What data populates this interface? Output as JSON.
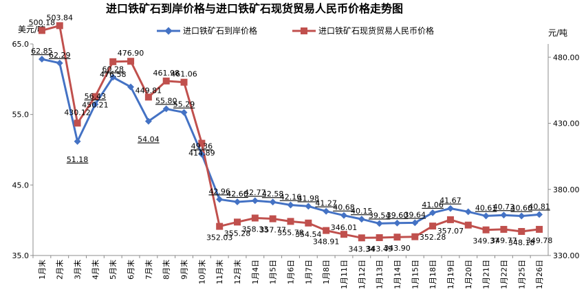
{
  "chart_data": {
    "type": "line",
    "title": "进口铁矿石到岸价格与进口铁矿石现货贸易人民币价格走势图",
    "y_left_unit": "美元/吨",
    "y_right_unit": "元/吨",
    "y_left_ticks": [
      "65.0",
      "55.0",
      "45.0",
      "35.0"
    ],
    "y_right_ticks": [
      "480.00",
      "430.00",
      "380.00",
      "330.00"
    ],
    "ylim_left": [
      35,
      65
    ],
    "ylim_right": [
      330,
      490
    ],
    "categories": [
      "1月末",
      "2月末",
      "3月末",
      "4月末",
      "5月末",
      "6月末",
      "7月末",
      "8月末",
      "9月末",
      "10月末",
      "11月末",
      "12月末",
      "1月4日",
      "1月5日",
      "1月6日",
      "1月7日",
      "1月8日",
      "1月11日",
      "1月12日",
      "1月13日",
      "1月14日",
      "1月15日",
      "1月18日",
      "1月19日",
      "1月20日",
      "1月21日",
      "1月22日",
      "1月25日",
      "1月26日"
    ],
    "series": [
      {
        "name": "进口铁矿石到岸价格",
        "axis": "left",
        "color": "#4472C4",
        "marker": "diamond",
        "values": [
          62.85,
          62.29,
          51.18,
          56.43,
          60.28,
          58.9,
          54.04,
          55.8,
          55.29,
          49.36,
          42.96,
          42.6,
          42.77,
          42.58,
          42.16,
          41.98,
          41.27,
          40.68,
          40.15,
          39.54,
          39.6,
          39.64,
          41.06,
          41.67,
          41.2,
          40.61,
          40.73,
          40.6,
          40.81
        ],
        "labels": [
          "62.85",
          "62.29",
          "51.18",
          "56.43",
          "60.28",
          "",
          "54.04",
          "55.80",
          "55.29",
          "49.36",
          "42.96",
          "42.60",
          "42.77",
          "42.58",
          "42.16",
          "41.98",
          "41.27",
          "40.68",
          "40.15",
          "39.54",
          "39.60",
          "39.64",
          "41.06",
          "41.67",
          "",
          "40.61",
          "40.73",
          "40.60",
          "40.81"
        ]
      },
      {
        "name": "进口铁矿石现货贸易人民币价格",
        "axis": "right",
        "color": "#C0504D",
        "marker": "square",
        "values": [
          500.18,
          503.84,
          430.12,
          450.21,
          476.58,
          476.9,
          449.81,
          461.98,
          461.06,
          414.89,
          352.03,
          355.28,
          358.33,
          357.77,
          355.78,
          354.54,
          348.91,
          346.01,
          343.34,
          343.49,
          343.9,
          344.2,
          352.28,
          357.07,
          353.0,
          349.37,
          349.77,
          348.18,
          349.78
        ],
        "labels": [
          "500.18",
          "503.84",
          "430.12",
          "450.21",
          "476.58",
          "476.90",
          "449.81",
          "461.98",
          "461.06",
          "414.89",
          "352.03",
          "355.28",
          "358.33",
          "357.77",
          "355.78",
          "354.54",
          "348.91",
          "346.01",
          "343.34",
          "343.49",
          "343.90",
          "",
          "352.28",
          "357.07",
          "",
          "349.37",
          "349.77",
          "348.18",
          "349.78"
        ]
      }
    ],
    "legend_position": "top",
    "grid": false
  }
}
